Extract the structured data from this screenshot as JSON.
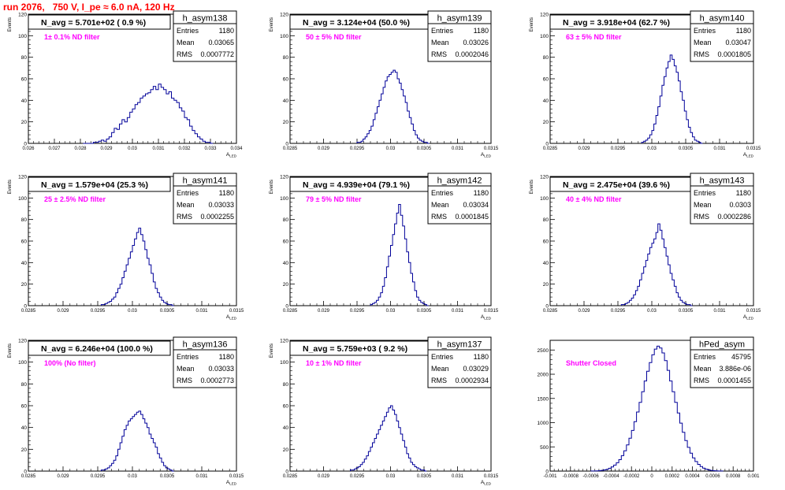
{
  "page": {
    "title": "run 2076,   750 V, I_pe ≈ 6.0 nA, 120 Hz"
  },
  "chart_data": [
    {
      "type": "bar",
      "hist_name": "h_asym138",
      "y_axis_label": "Events",
      "x_axis_label": "A_LED",
      "navg": "N_avg = 5.701e+02 ( 0.9 %)",
      "filter": "1± 0.1% ND filter",
      "stats": {
        "entries": "1180",
        "mean": "0.03065",
        "rms": "0.0007772"
      },
      "xlim": [
        0.026,
        0.034
      ],
      "ylim": [
        0,
        120
      ],
      "x_ticks": [
        0.026,
        0.027,
        0.028,
        0.029,
        0.03,
        0.031,
        0.032,
        0.033,
        0.034
      ],
      "x_tick_labels": [
        "0.026",
        "0.027",
        "0.028",
        "0.029",
        "0.03",
        "0.031",
        "0.032",
        "0.033",
        "0.034"
      ],
      "y_ticks": [
        0,
        20,
        40,
        60,
        80,
        100,
        120
      ],
      "y_tick_labels": [
        "0",
        "20",
        "40",
        "60",
        "80",
        "100",
        "120"
      ],
      "x_start": 0.0281,
      "bin_width": 0.0001,
      "values": [
        0,
        0,
        0,
        0,
        1,
        1,
        2,
        3,
        2,
        4,
        6,
        10,
        14,
        13,
        18,
        22,
        20,
        24,
        29,
        32,
        36,
        38,
        42,
        44,
        46,
        47,
        50,
        53,
        50,
        55,
        52,
        50,
        46,
        48,
        42,
        40,
        38,
        33,
        30,
        24,
        22,
        16,
        12,
        9,
        6,
        4,
        2,
        1,
        1,
        0
      ]
    },
    {
      "type": "bar",
      "hist_name": "h_asym139",
      "y_axis_label": "Events",
      "x_axis_label": "A_LED",
      "navg": "N_avg = 3.124e+04 (50.0 %)",
      "filter": "50 ± 5% ND filter",
      "stats": {
        "entries": "1180",
        "mean": "0.03026",
        "rms": "0.0002046"
      },
      "xlim": [
        0.0285,
        0.0315
      ],
      "ylim": [
        0,
        120
      ],
      "x_ticks": [
        0.0285,
        0.029,
        0.0295,
        0.03,
        0.0305,
        0.031,
        0.0315
      ],
      "x_tick_labels": [
        "0.0285",
        "0.029",
        "0.0295",
        "0.03",
        "0.0305",
        "0.031",
        "0.0315"
      ],
      "y_ticks": [
        0,
        20,
        40,
        60,
        80,
        100,
        120
      ],
      "y_tick_labels": [
        "0",
        "20",
        "40",
        "60",
        "80",
        "100",
        "120"
      ],
      "x_start": 0.0295,
      "bin_width": 3e-05,
      "values": [
        1,
        1,
        2,
        4,
        6,
        9,
        12,
        16,
        22,
        28,
        34,
        40,
        46,
        52,
        58,
        62,
        64,
        66,
        68,
        66,
        60,
        56,
        50,
        44,
        38,
        30,
        24,
        18,
        12,
        8,
        5,
        3,
        2,
        1,
        1,
        0
      ]
    },
    {
      "type": "bar",
      "hist_name": "h_asym140",
      "y_axis_label": "Events",
      "x_axis_label": "A_LED",
      "navg": "N_avg = 3.918e+04 (62.7 %)",
      "filter": "63 ± 5% ND filter",
      "stats": {
        "entries": "1180",
        "mean": "0.03047",
        "rms": "0.0001805"
      },
      "xlim": [
        0.0285,
        0.0315
      ],
      "ylim": [
        0,
        120
      ],
      "x_ticks": [
        0.0285,
        0.029,
        0.0295,
        0.03,
        0.0305,
        0.031,
        0.0315
      ],
      "x_tick_labels": [
        "0.0285",
        "0.029",
        "0.0295",
        "0.03",
        "0.0305",
        "0.031",
        "0.0315"
      ],
      "y_ticks": [
        0,
        20,
        40,
        60,
        80,
        100,
        120
      ],
      "y_tick_labels": [
        "0",
        "20",
        "40",
        "60",
        "80",
        "100",
        "120"
      ],
      "x_start": 0.02985,
      "bin_width": 3e-05,
      "values": [
        1,
        2,
        3,
        5,
        8,
        12,
        18,
        26,
        34,
        44,
        54,
        62,
        70,
        76,
        82,
        78,
        72,
        66,
        58,
        48,
        40,
        30,
        22,
        15,
        10,
        6,
        3,
        2,
        1,
        0
      ]
    },
    {
      "type": "bar",
      "hist_name": "h_asym141",
      "y_axis_label": "Events",
      "x_axis_label": "A_LED",
      "navg": "N_avg = 1.579e+04 (25.3 %)",
      "filter": "25 ± 2.5% ND filter",
      "stats": {
        "entries": "1180",
        "mean": "0.03033",
        "rms": "0.0002255"
      },
      "xlim": [
        0.0285,
        0.0315
      ],
      "ylim": [
        0,
        120
      ],
      "x_ticks": [
        0.0285,
        0.029,
        0.0295,
        0.03,
        0.0305,
        0.031,
        0.0315
      ],
      "x_tick_labels": [
        "0.0285",
        "0.029",
        "0.0295",
        "0.03",
        "0.0305",
        "0.031",
        "0.0315"
      ],
      "y_ticks": [
        0,
        20,
        40,
        60,
        80,
        100,
        120
      ],
      "y_tick_labels": [
        "0",
        "20",
        "40",
        "60",
        "80",
        "100",
        "120"
      ],
      "x_start": 0.02955,
      "bin_width": 3e-05,
      "values": [
        1,
        1,
        2,
        3,
        4,
        6,
        8,
        12,
        16,
        20,
        26,
        32,
        38,
        44,
        50,
        56,
        62,
        68,
        72,
        66,
        60,
        52,
        44,
        38,
        30,
        22,
        16,
        12,
        8,
        5,
        3,
        2,
        1,
        1,
        0
      ]
    },
    {
      "type": "bar",
      "hist_name": "h_asym142",
      "y_axis_label": "Events",
      "x_axis_label": "A_LED",
      "navg": "N_avg = 4.939e+04 (79.1 %)",
      "filter": "79 ± 5% ND filter",
      "stats": {
        "entries": "1180",
        "mean": "0.03034",
        "rms": "0.0001845"
      },
      "xlim": [
        0.0285,
        0.0315
      ],
      "ylim": [
        0,
        120
      ],
      "x_ticks": [
        0.0285,
        0.029,
        0.0295,
        0.03,
        0.0305,
        0.031,
        0.0315
      ],
      "x_tick_labels": [
        "0.0285",
        "0.029",
        "0.0295",
        "0.03",
        "0.0305",
        "0.031",
        "0.0315"
      ],
      "y_ticks": [
        0,
        20,
        40,
        60,
        80,
        100,
        120
      ],
      "y_tick_labels": [
        "0",
        "20",
        "40",
        "60",
        "80",
        "100",
        "120"
      ],
      "x_start": 0.0297,
      "bin_width": 3e-05,
      "values": [
        1,
        2,
        3,
        5,
        8,
        12,
        18,
        26,
        36,
        46,
        56,
        66,
        76,
        86,
        94,
        84,
        74,
        62,
        50,
        40,
        30,
        22,
        14,
        8,
        5,
        3,
        2,
        1,
        0
      ]
    },
    {
      "type": "bar",
      "hist_name": "h_asym143",
      "y_axis_label": "Events",
      "x_axis_label": "A_LED",
      "navg": "N_avg = 2.475e+04 (39.6 %)",
      "filter": "40 ± 4% ND filter",
      "stats": {
        "entries": "1180",
        "mean": "0.0303",
        "rms": "0.0002286"
      },
      "xlim": [
        0.0285,
        0.0315
      ],
      "ylim": [
        0,
        120
      ],
      "x_ticks": [
        0.0285,
        0.029,
        0.0295,
        0.03,
        0.0305,
        0.031,
        0.0315
      ],
      "x_tick_labels": [
        "0.0285",
        "0.029",
        "0.0295",
        "0.03",
        "0.0305",
        "0.031",
        "0.0315"
      ],
      "y_ticks": [
        0,
        20,
        40,
        60,
        80,
        100,
        120
      ],
      "y_tick_labels": [
        "0",
        "20",
        "40",
        "60",
        "80",
        "100",
        "120"
      ],
      "x_start": 0.02955,
      "bin_width": 3e-05,
      "values": [
        1,
        1,
        2,
        3,
        5,
        7,
        10,
        14,
        18,
        24,
        30,
        36,
        42,
        48,
        54,
        58,
        62,
        68,
        76,
        70,
        62,
        54,
        46,
        38,
        30,
        24,
        18,
        12,
        8,
        5,
        3,
        2,
        1,
        1,
        0
      ]
    },
    {
      "type": "bar",
      "hist_name": "h_asym136",
      "y_axis_label": "Events",
      "x_axis_label": "A_LED",
      "navg": "N_avg = 6.246e+04 (100.0 %)",
      "filter": "100% (No filter)",
      "stats": {
        "entries": "1180",
        "mean": "0.03033",
        "rms": "0.0002773"
      },
      "xlim": [
        0.0285,
        0.0315
      ],
      "ylim": [
        0,
        120
      ],
      "x_ticks": [
        0.0285,
        0.029,
        0.0295,
        0.03,
        0.0305,
        0.031,
        0.0315
      ],
      "x_tick_labels": [
        "0.0285",
        "0.029",
        "0.0295",
        "0.03",
        "0.0305",
        "0.031",
        "0.0315"
      ],
      "y_ticks": [
        0,
        20,
        40,
        60,
        80,
        100,
        120
      ],
      "y_tick_labels": [
        "0",
        "20",
        "40",
        "60",
        "80",
        "100",
        "120"
      ],
      "x_start": 0.02955,
      "bin_width": 3e-05,
      "values": [
        1,
        1,
        2,
        3,
        5,
        7,
        10,
        14,
        20,
        26,
        32,
        38,
        42,
        46,
        48,
        50,
        52,
        54,
        55,
        52,
        48,
        44,
        40,
        34,
        30,
        26,
        22,
        16,
        12,
        8,
        5,
        3,
        2,
        1,
        0
      ]
    },
    {
      "type": "bar",
      "hist_name": "h_asym137",
      "y_axis_label": "Events",
      "x_axis_label": "A_LED",
      "navg": "N_avg = 5.759e+03 ( 9.2 %)",
      "filter": "10 ± 1% ND filter",
      "stats": {
        "entries": "1180",
        "mean": "0.03029",
        "rms": "0.0002934"
      },
      "xlim": [
        0.0285,
        0.0315
      ],
      "ylim": [
        0,
        120
      ],
      "x_ticks": [
        0.0285,
        0.029,
        0.0295,
        0.03,
        0.0305,
        0.031,
        0.0315
      ],
      "x_tick_labels": [
        "0.0285",
        "0.029",
        "0.0295",
        "0.03",
        "0.0305",
        "0.031",
        "0.0315"
      ],
      "y_ticks": [
        0,
        20,
        40,
        60,
        80,
        100,
        120
      ],
      "y_tick_labels": [
        "0",
        "20",
        "40",
        "60",
        "80",
        "100",
        "120"
      ],
      "x_start": 0.0294,
      "bin_width": 3e-05,
      "values": [
        1,
        1,
        2,
        3,
        4,
        6,
        8,
        11,
        14,
        18,
        22,
        26,
        30,
        34,
        38,
        42,
        46,
        50,
        54,
        58,
        60,
        56,
        52,
        46,
        40,
        34,
        28,
        22,
        16,
        12,
        8,
        6,
        4,
        3,
        2,
        1,
        1,
        0
      ]
    },
    {
      "type": "bar",
      "hist_name": "hPed_asym",
      "y_axis_label": "",
      "x_axis_label": "",
      "navg": "",
      "filter": "Shutter Closed",
      "stats": {
        "entries": "45795",
        "mean": "3.886e-06",
        "rms": "0.0001455"
      },
      "xlim": [
        -0.001,
        0.001
      ],
      "ylim": [
        0,
        2700
      ],
      "x_ticks": [
        -0.001,
        -0.0008,
        -0.0006,
        -0.0004,
        -0.0002,
        0,
        0.0002,
        0.0004,
        0.0006,
        0.0008,
        0.001
      ],
      "x_tick_labels": [
        "-0.001",
        "-0.0008",
        "-0.0006",
        "-0.0004",
        "-0.0002",
        "0",
        "0.0002",
        "0.0004",
        "0.0006",
        "0.0008",
        "0.001"
      ],
      "y_ticks": [
        0,
        500,
        1000,
        1500,
        2000,
        2500
      ],
      "y_tick_labels": [
        "0",
        "500",
        "1000",
        "1500",
        "2000",
        "2500"
      ],
      "x_start": -0.0006,
      "bin_width": 2.5e-05,
      "values": [
        1,
        2,
        4,
        8,
        14,
        24,
        38,
        58,
        86,
        124,
        172,
        236,
        318,
        420,
        540,
        680,
        840,
        1020,
        1220,
        1420,
        1640,
        1860,
        2060,
        2240,
        2400,
        2520,
        2580,
        2540,
        2440,
        2280,
        2080,
        1860,
        1640,
        1420,
        1200,
        990,
        800,
        630,
        490,
        370,
        272,
        196,
        138,
        94,
        62,
        40,
        24,
        14,
        8,
        4,
        2,
        1
      ]
    }
  ]
}
